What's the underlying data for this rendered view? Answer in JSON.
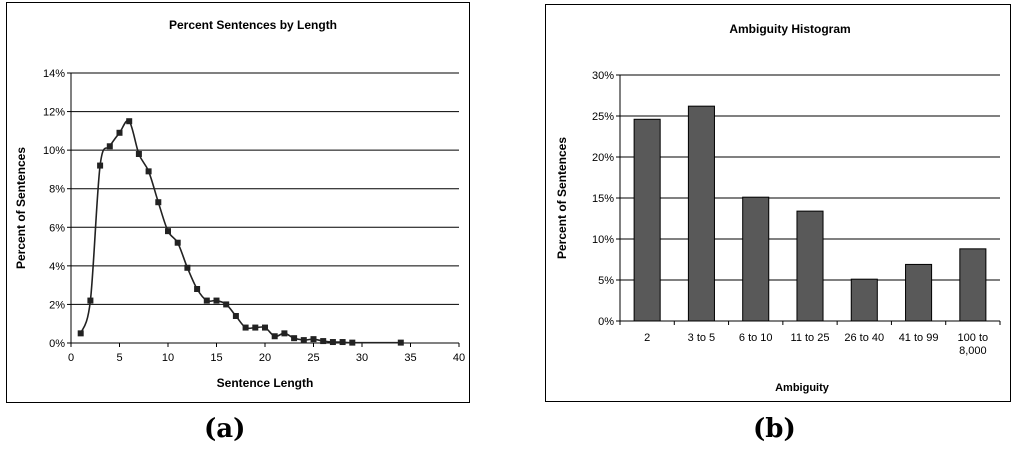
{
  "panels": {
    "a": {
      "caption": "(a)"
    },
    "b": {
      "caption": "(b)"
    }
  },
  "chart_data": [
    {
      "type": "line",
      "title": "Percent Sentences by Length",
      "xlabel": "Sentence Length",
      "ylabel": "Percent of Sentences",
      "xlim": [
        0,
        40
      ],
      "ylim": [
        0,
        14
      ],
      "x_ticks": [
        "0",
        "5",
        "10",
        "15",
        "20",
        "25",
        "30",
        "35",
        "40"
      ],
      "y_ticks": [
        "0%",
        "2%",
        "4%",
        "6%",
        "8%",
        "10%",
        "12%",
        "14%"
      ],
      "grid": "horizontal",
      "series": [
        {
          "points": [
            [
              1,
              0.5
            ],
            [
              2,
              2.2
            ],
            [
              3,
              9.2
            ],
            [
              4,
              10.2
            ],
            [
              5,
              10.9
            ],
            [
              6,
              11.5
            ],
            [
              7,
              9.8
            ],
            [
              8,
              8.9
            ],
            [
              9,
              7.3
            ],
            [
              10,
              5.8
            ],
            [
              11,
              5.2
            ],
            [
              12,
              3.9
            ],
            [
              13,
              2.8
            ],
            [
              14,
              2.2
            ],
            [
              15,
              2.2
            ],
            [
              16,
              2.0
            ],
            [
              17,
              1.4
            ],
            [
              18,
              0.8
            ],
            [
              19,
              0.8
            ],
            [
              20,
              0.8
            ],
            [
              21,
              0.35
            ],
            [
              22,
              0.5
            ],
            [
              23,
              0.25
            ],
            [
              24,
              0.15
            ],
            [
              25,
              0.2
            ],
            [
              26,
              0.1
            ],
            [
              27,
              0.05
            ],
            [
              28,
              0.05
            ],
            [
              29,
              0.02
            ],
            [
              34,
              0.02
            ]
          ]
        }
      ]
    },
    {
      "type": "bar",
      "title": "Ambiguity Histogram",
      "xlabel": "Ambiguity",
      "ylabel": "Percent of Sentences",
      "ylim": [
        0,
        30
      ],
      "y_ticks": [
        "0%",
        "5%",
        "10%",
        "15%",
        "20%",
        "25%",
        "30%"
      ],
      "grid": "horizontal",
      "categories": [
        [
          "2"
        ],
        [
          "3 to 5"
        ],
        [
          "6 to 10"
        ],
        [
          "11 to 25"
        ],
        [
          "26 to 40"
        ],
        [
          "41 to 99"
        ],
        [
          "100 to",
          "8,000"
        ]
      ],
      "values": [
        24.6,
        26.2,
        15.1,
        13.4,
        5.1,
        6.9,
        8.8
      ],
      "bar_color": "#595959"
    }
  ]
}
